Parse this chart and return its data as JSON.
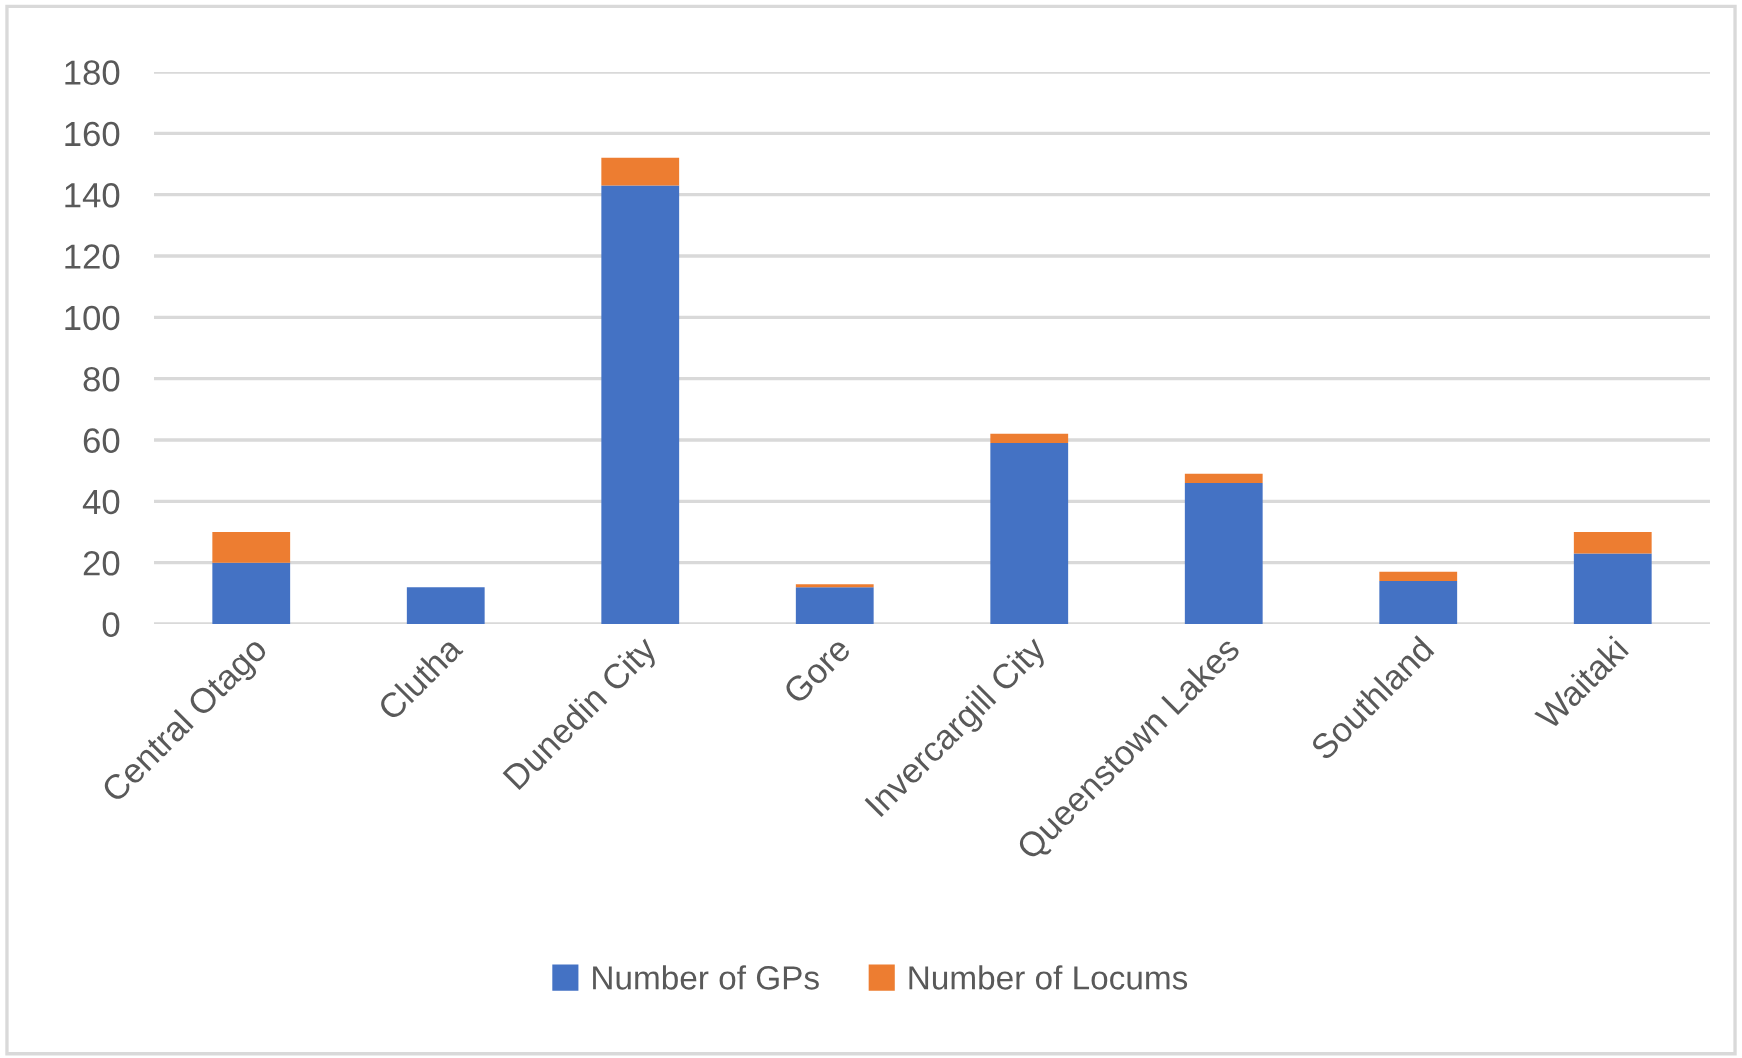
{
  "chart_data": {
    "type": "bar",
    "stacked": true,
    "categories": [
      "Central Otago",
      "Clutha",
      "Dunedin City",
      "Gore",
      "Invercargill City",
      "Queenstown Lakes",
      "Southland",
      "Waitaki"
    ],
    "series": [
      {
        "name": "Number of GPs",
        "color": "#4472c4",
        "values": [
          20,
          12,
          143,
          12,
          59,
          46,
          14,
          23
        ]
      },
      {
        "name": "Number of Locums",
        "color": "#ed7d31",
        "values": [
          10,
          0,
          9,
          1,
          3,
          3,
          3,
          7
        ]
      }
    ],
    "ylim": [
      0,
      180
    ],
    "yticks": [
      0,
      20,
      40,
      60,
      80,
      100,
      120,
      140,
      160,
      180
    ],
    "grid": "y",
    "legend": "bottom"
  }
}
